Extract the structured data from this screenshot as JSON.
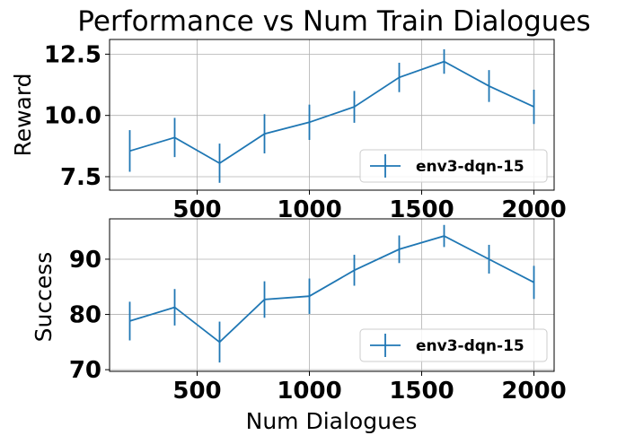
{
  "title": "Performance vs Num Train Dialogues",
  "chart_data": [
    {
      "type": "line",
      "title": "Performance vs Num Train Dialogues",
      "xlabel": "",
      "ylabel": "Reward",
      "x": [
        200,
        400,
        600,
        800,
        1000,
        1200,
        1400,
        1600,
        1800,
        2000
      ],
      "series": [
        {
          "name": "env3-dqn-15",
          "color": "#1f77b4",
          "values": [
            8.55,
            9.1,
            8.05,
            9.25,
            9.72,
            10.35,
            11.55,
            12.2,
            11.2,
            10.35
          ],
          "errors": [
            0.85,
            0.8,
            0.8,
            0.8,
            0.72,
            0.65,
            0.6,
            0.5,
            0.65,
            0.7
          ]
        }
      ],
      "xlim": [
        110,
        2090
      ],
      "ylim": [
        6.95,
        13.1
      ],
      "xticks": [
        500,
        1000,
        1500,
        2000
      ],
      "xtick_labels": [
        "500",
        "1000",
        "1500",
        "2000"
      ],
      "yticks": [
        7.5,
        10.0,
        12.5
      ],
      "ytick_labels": [
        "7.5",
        "10.0",
        "12.5"
      ],
      "grid": true,
      "legend": "lower-right"
    },
    {
      "type": "line",
      "title": "",
      "xlabel": "Num Dialogues",
      "ylabel": "Success",
      "x": [
        200,
        400,
        600,
        800,
        1000,
        1200,
        1400,
        1600,
        1800,
        2000
      ],
      "series": [
        {
          "name": "env3-dqn-15",
          "color": "#1f77b4",
          "values": [
            78.8,
            81.3,
            75.0,
            82.7,
            83.3,
            88.0,
            91.8,
            94.2,
            90.0,
            85.8
          ],
          "errors": [
            3.5,
            3.3,
            3.7,
            3.3,
            3.2,
            2.8,
            2.5,
            2.0,
            2.6,
            3.0
          ]
        }
      ],
      "xlim": [
        110,
        2090
      ],
      "ylim": [
        69.7,
        97.3
      ],
      "xticks": [
        500,
        1000,
        1500,
        2000
      ],
      "xtick_labels": [
        "500",
        "1000",
        "1500",
        "2000"
      ],
      "yticks": [
        70,
        80,
        90
      ],
      "ytick_labels": [
        "70",
        "80",
        "90"
      ],
      "grid": true,
      "legend": "lower-right"
    }
  ]
}
